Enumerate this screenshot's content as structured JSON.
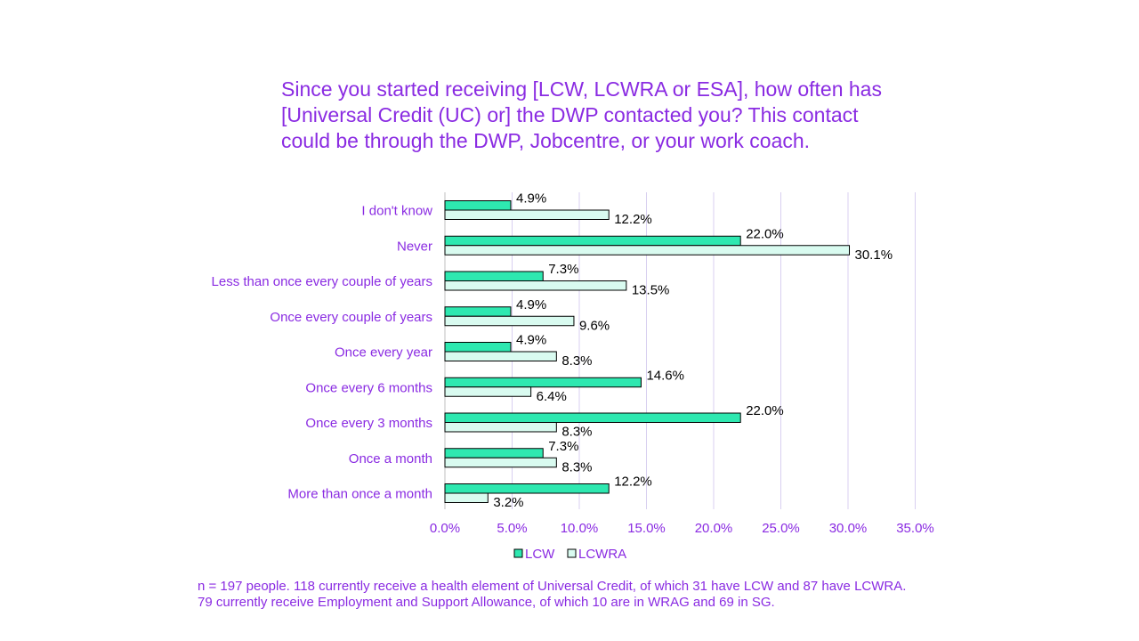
{
  "chart_data": {
    "type": "bar",
    "orientation": "horizontal",
    "title": "Since you started receiving [LCW, LCWRA or ESA], how often has [Universal Credit (UC) or] the DWP contacted you? This contact could be through the DWP, Jobcentre, or your work coach.",
    "categories": [
      "I don't know",
      "Never",
      "Less than once every couple of years",
      "Once every couple of years",
      "Once every year",
      "Once every 6 months",
      "Once every 3 months",
      "Once a month",
      "More than once a month"
    ],
    "series": [
      {
        "name": "LCW",
        "color": "#2ee8b0",
        "values": [
          4.9,
          22.0,
          7.3,
          4.9,
          4.9,
          14.6,
          22.0,
          7.3,
          12.2
        ],
        "labels": [
          "4.9%",
          "22.0%",
          "7.3%",
          "4.9%",
          "4.9%",
          "14.6%",
          "22.0%",
          "7.3%",
          "12.2%"
        ]
      },
      {
        "name": "LCWRA",
        "color": "#d9fbf0",
        "values": [
          12.2,
          30.1,
          13.5,
          9.6,
          8.3,
          6.4,
          8.3,
          8.3,
          3.2
        ],
        "labels": [
          "12.2%",
          "30.1%",
          "13.5%",
          "9.6%",
          "8.3%",
          "6.4%",
          "8.3%",
          "8.3%",
          "3.2%"
        ]
      }
    ],
    "x_ticks": [
      "0.0%",
      "5.0%",
      "10.0%",
      "15.0%",
      "20.0%",
      "25.0%",
      "30.0%",
      "35.0%"
    ],
    "xlim": [
      0,
      35
    ],
    "grid": true,
    "legend_position": "bottom",
    "label_color": "#8a2be2",
    "gridline_color": "#d8cff0"
  },
  "footnote": {
    "line1": "n = 197 people. 118 currently receive a health element of Universal Credit, of which 31 have LCW and 87 have LCWRA.",
    "line2": "79 currently receive Employment and Support Allowance, of which 10 are in WRAG and 69 in SG."
  }
}
